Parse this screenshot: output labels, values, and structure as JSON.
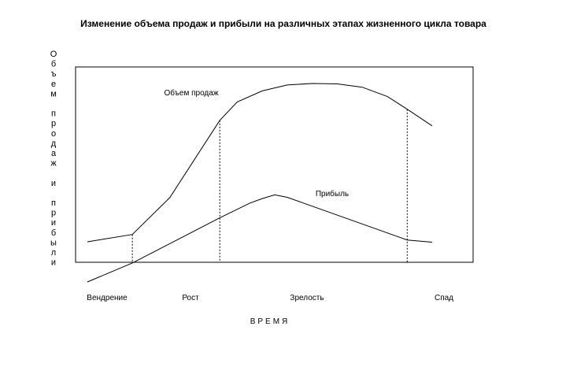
{
  "chart_data": {
    "type": "line",
    "title": "Изменение объема продаж и прибыли на различных этапах жизненного цикла товара",
    "ylabel": "Объем продаж и прибыли",
    "xlabel": "ВРЕМЯ",
    "xlim": [
      0,
      13.5
    ],
    "ylim": [
      -1,
      10
    ],
    "x_label_points": [
      {
        "label": "Вендрение",
        "x": 1.5
      },
      {
        "label": "Рост",
        "x": 4
      },
      {
        "label": "Зрелость",
        "x": 8.5
      },
      {
        "label": "Спад",
        "x": 13
      }
    ],
    "grid": false,
    "legend": "none",
    "series": [
      {
        "name": "Объем продаж",
        "color": "#000000",
        "points": [
          [
            0,
            1.2
          ],
          [
            1.8,
            1.6
          ],
          [
            3.3,
            3.6
          ],
          [
            5.3,
            7.8
          ],
          [
            6.0,
            8.8
          ],
          [
            7.0,
            9.4
          ],
          [
            8.0,
            9.72
          ],
          [
            9.0,
            9.8
          ],
          [
            10.0,
            9.78
          ],
          [
            11.0,
            9.6
          ],
          [
            12.0,
            9.1
          ],
          [
            12.8,
            8.4
          ],
          [
            13.8,
            7.5
          ]
        ]
      },
      {
        "name": "Прибыль",
        "color": "#000000",
        "points": [
          [
            0,
            -0.98
          ],
          [
            1.8,
            0.05
          ],
          [
            5.3,
            2.5
          ],
          [
            6.5,
            3.3
          ],
          [
            7.0,
            3.55
          ],
          [
            7.5,
            3.75
          ],
          [
            8.0,
            3.62
          ],
          [
            12.8,
            1.3
          ],
          [
            13.8,
            1.18
          ]
        ]
      }
    ],
    "reference_lines": [
      {
        "x": 1.8,
        "style": "dotted"
      },
      {
        "x": 5.3,
        "style": "dotted"
      },
      {
        "x": 12.8,
        "style": "dotted"
      }
    ]
  }
}
